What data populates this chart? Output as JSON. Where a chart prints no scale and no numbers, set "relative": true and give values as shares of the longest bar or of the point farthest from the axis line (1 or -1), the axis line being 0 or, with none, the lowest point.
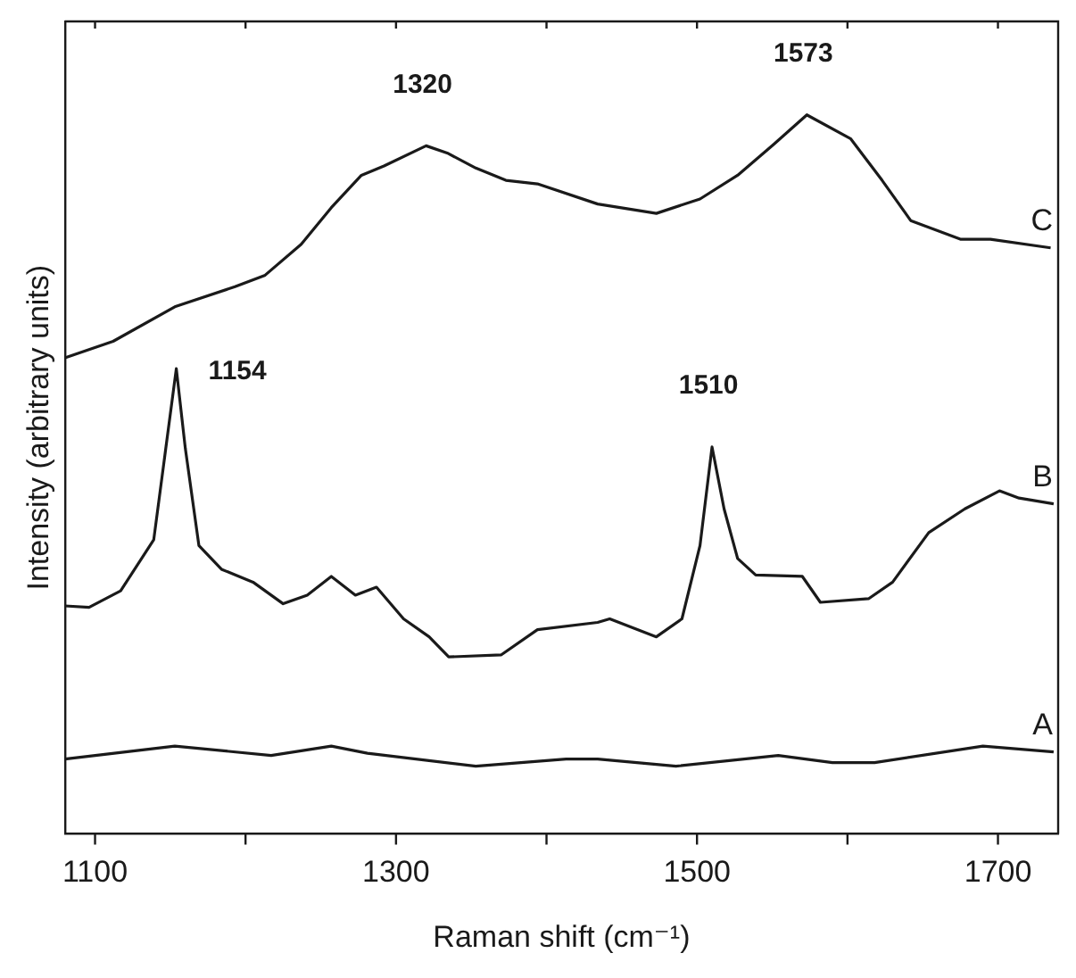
{
  "chart_data": {
    "type": "line",
    "relative": true,
    "xlabel": "Raman shift (cm⁻¹)",
    "ylabel": "Intensity (arbitrary units)",
    "xlim": [
      1080,
      1740
    ],
    "xticks": [
      1100,
      {
        "value": 1200,
        "label": null
      },
      1300,
      {
        "value": 1400,
        "label": null
      },
      1500,
      {
        "value": 1600,
        "label": null
      },
      1700
    ],
    "grid": false,
    "legend": false,
    "marker": "none",
    "line_style": "solid",
    "series": [
      {
        "name": "C",
        "color": "#1a1a1a",
        "x": [
          1080,
          1112,
          1153,
          1193,
          1213,
          1237,
          1257,
          1277,
          1292,
          1320,
          1334,
          1353,
          1373,
          1394,
          1434,
          1473,
          1502,
          1527,
          1551,
          1573,
          1602,
          1623,
          1642,
          1675,
          1695,
          1735
        ],
        "values": [
          0.662,
          0.685,
          0.733,
          0.761,
          0.777,
          0.82,
          0.871,
          0.916,
          0.929,
          0.957,
          0.947,
          0.926,
          0.909,
          0.904,
          0.876,
          0.863,
          0.883,
          0.916,
          0.959,
          1.0,
          0.967,
          0.909,
          0.853,
          0.827,
          0.827,
          0.815
        ]
      },
      {
        "name": "B",
        "color": "#1a1a1a",
        "x": [
          1080,
          1096,
          1117,
          1139,
          1147,
          1154,
          1160,
          1169,
          1184,
          1205,
          1225,
          1241,
          1257,
          1273,
          1287,
          1305,
          1322,
          1335,
          1370,
          1394,
          1434,
          1442,
          1473,
          1490,
          1502,
          1510,
          1518,
          1527,
          1539,
          1570,
          1582,
          1614,
          1630,
          1654,
          1678,
          1701,
          1714,
          1737
        ],
        "values": [
          0.317,
          0.315,
          0.338,
          0.409,
          0.536,
          0.647,
          0.536,
          0.401,
          0.368,
          0.35,
          0.32,
          0.332,
          0.358,
          0.332,
          0.343,
          0.299,
          0.274,
          0.246,
          0.249,
          0.284,
          0.294,
          0.299,
          0.274,
          0.299,
          0.401,
          0.538,
          0.452,
          0.383,
          0.36,
          0.358,
          0.322,
          0.327,
          0.35,
          0.419,
          0.452,
          0.477,
          0.467,
          0.459
        ]
      },
      {
        "name": "A",
        "color": "#1a1a1a",
        "x": [
          1080,
          1153,
          1217,
          1257,
          1281,
          1353,
          1413,
          1434,
          1486,
          1554,
          1590,
          1618,
          1690,
          1737
        ],
        "values": [
          0.104,
          0.122,
          0.109,
          0.122,
          0.112,
          0.094,
          0.104,
          0.104,
          0.094,
          0.109,
          0.099,
          0.099,
          0.122,
          0.114
        ]
      }
    ],
    "annotations": [
      {
        "text": "1320",
        "x": 1320,
        "y": 0.957
      },
      {
        "text": "1573",
        "x": 1573,
        "y": 1.0
      },
      {
        "text": "1154",
        "x": 1154,
        "y": 0.647
      },
      {
        "text": "1510",
        "x": 1510,
        "y": 0.538
      }
    ]
  }
}
